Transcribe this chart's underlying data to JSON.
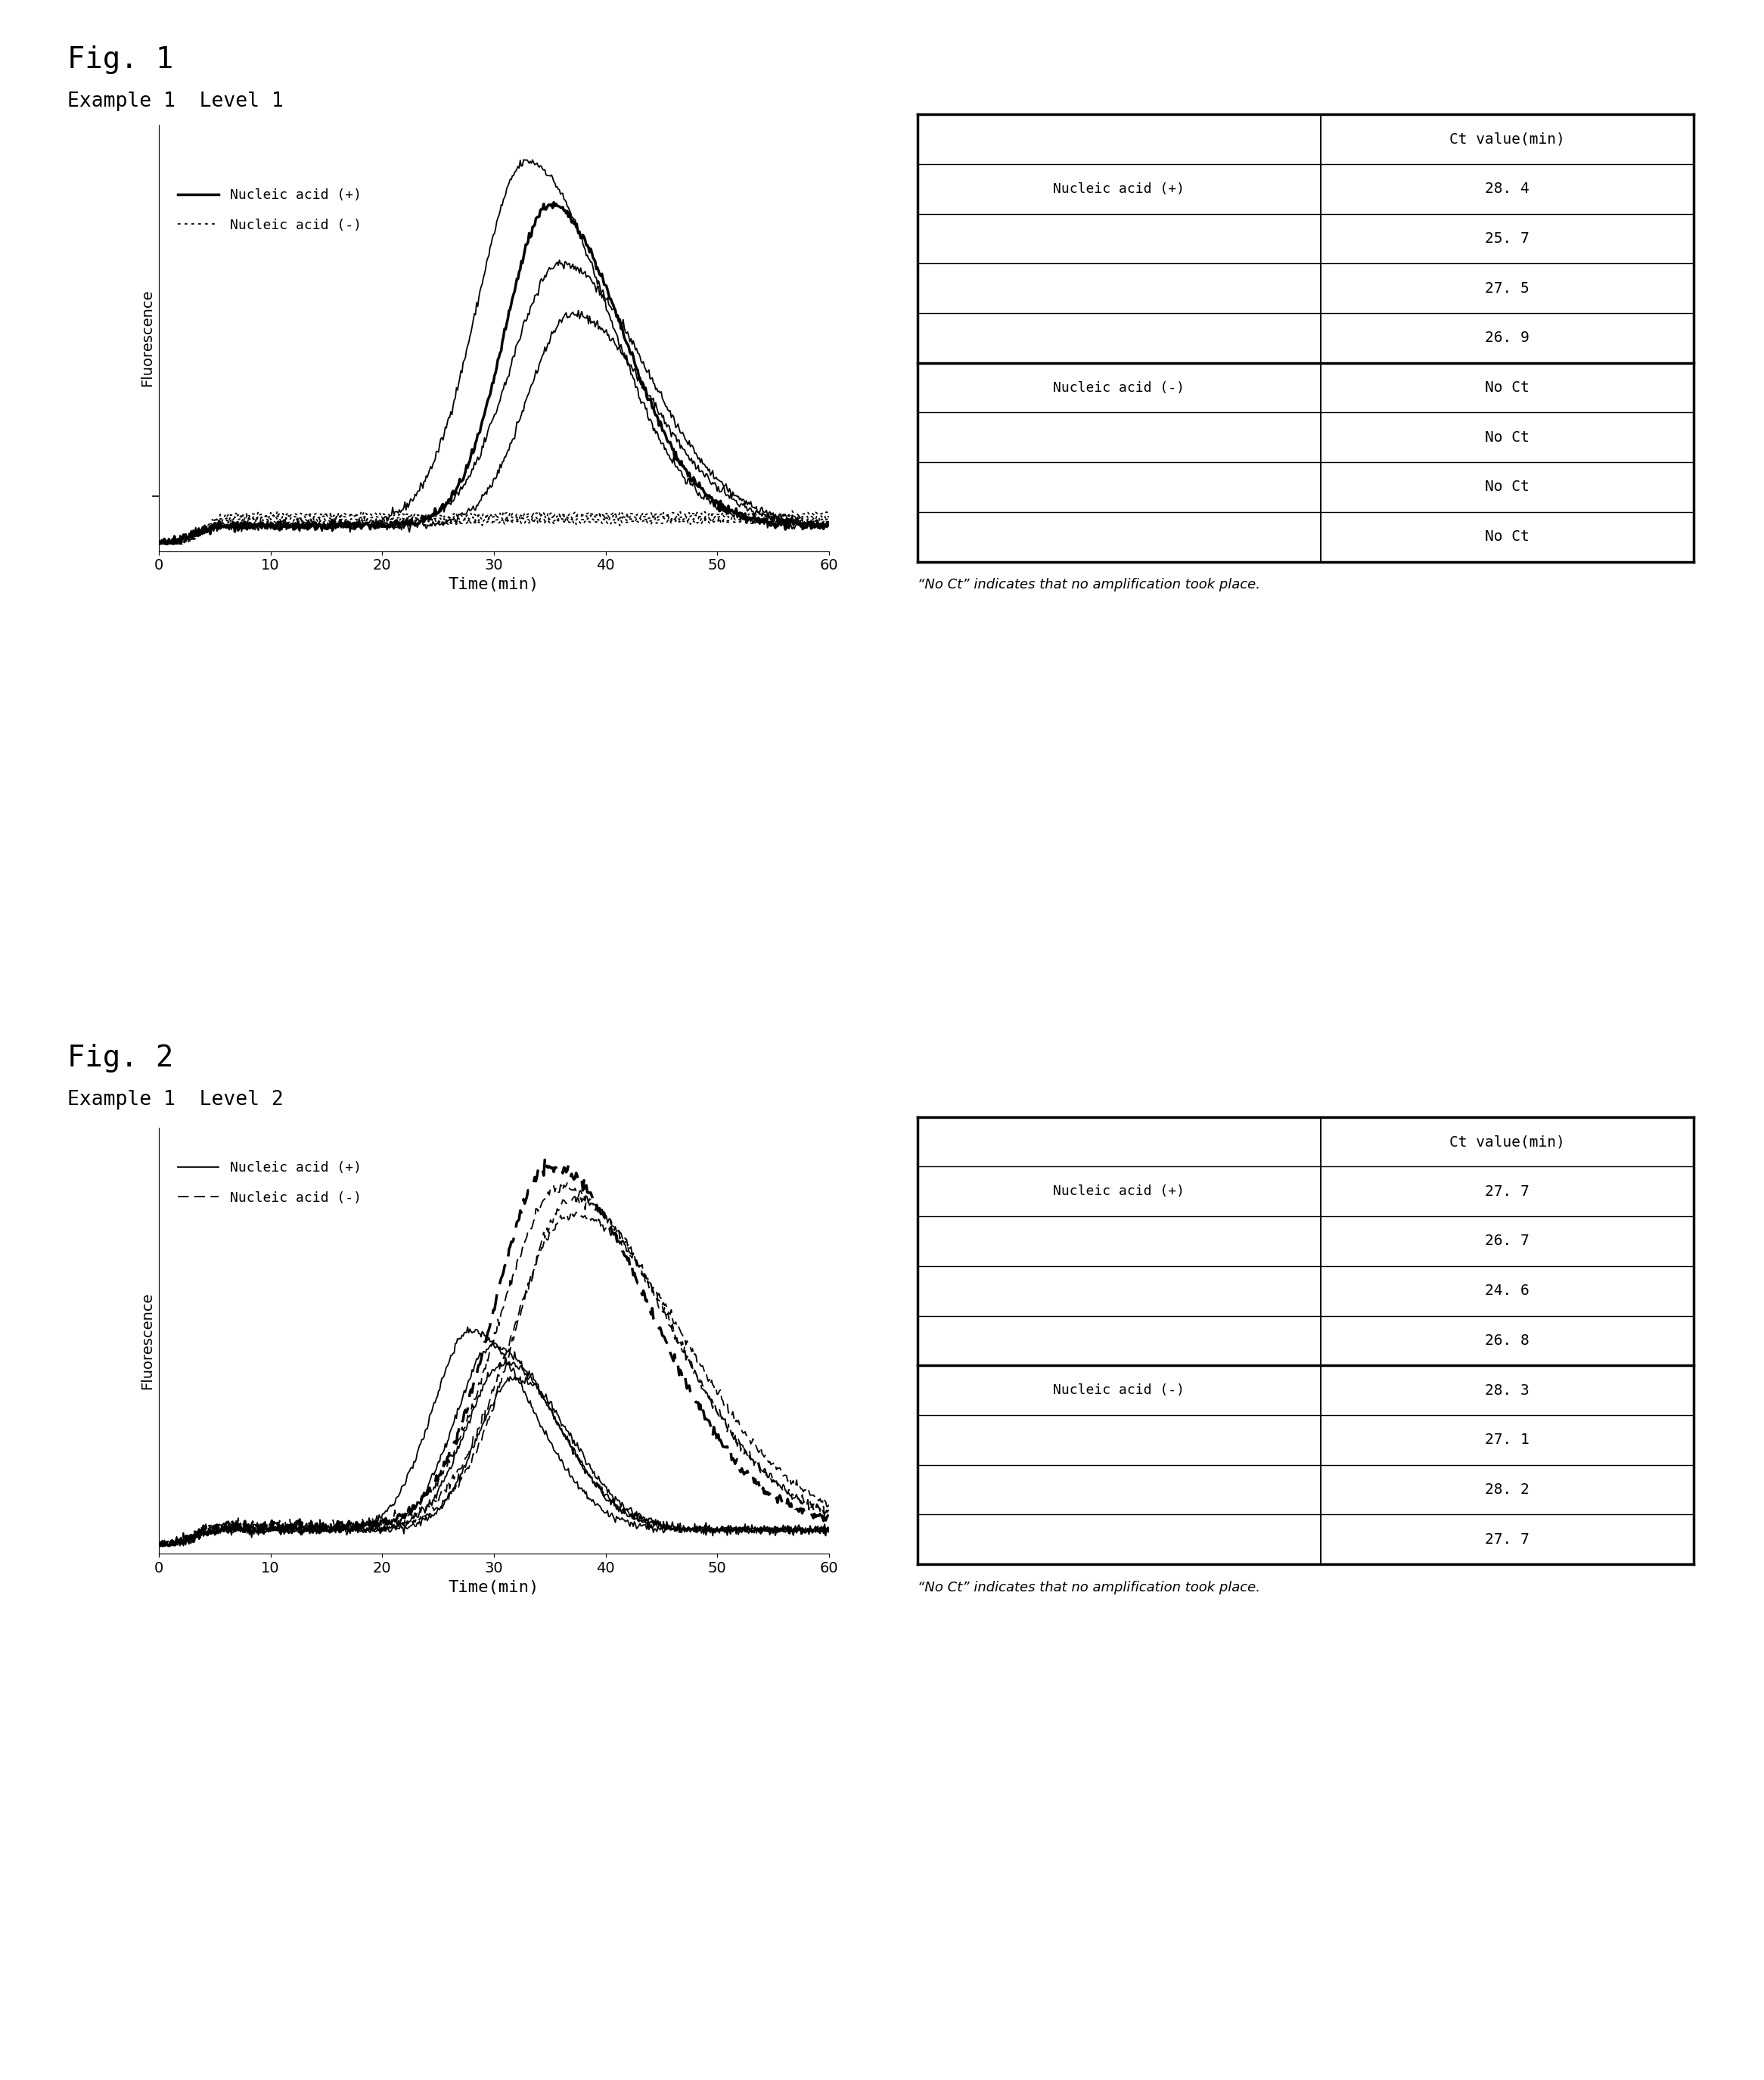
{
  "fig1_title": "Fig. 1",
  "fig1_subtitle": "Example 1  Level 1",
  "fig2_title": "Fig. 2",
  "fig2_subtitle": "Example 1  Level 2",
  "xlabel": "Time(min)",
  "ylabel": "Fluorescence",
  "xmin": 0,
  "xmax": 60,
  "xticks": [
    0,
    10,
    20,
    30,
    40,
    50,
    60
  ],
  "note": "“No Ct” indicates that no amplification took place.",
  "fig1_table": {
    "rows": [
      [
        "Nucleic acid (+)",
        "28. 4"
      ],
      [
        "",
        "25. 7"
      ],
      [
        "",
        "27. 5"
      ],
      [
        "",
        "26. 9"
      ],
      [
        "Nucleic acid (-)",
        "No Ct"
      ],
      [
        "",
        "No Ct"
      ],
      [
        "",
        "No Ct"
      ],
      [
        "",
        "No Ct"
      ]
    ]
  },
  "fig2_table": {
    "rows": [
      [
        "Nucleic acid (+)",
        "27. 7"
      ],
      [
        "",
        "26. 7"
      ],
      [
        "",
        "24. 6"
      ],
      [
        "",
        "26. 8"
      ],
      [
        "Nucleic acid (-)",
        "28. 3"
      ],
      [
        "",
        "27. 1"
      ],
      [
        "",
        "28. 2"
      ],
      [
        "",
        "27. 7"
      ]
    ]
  },
  "background_color": "#ffffff"
}
